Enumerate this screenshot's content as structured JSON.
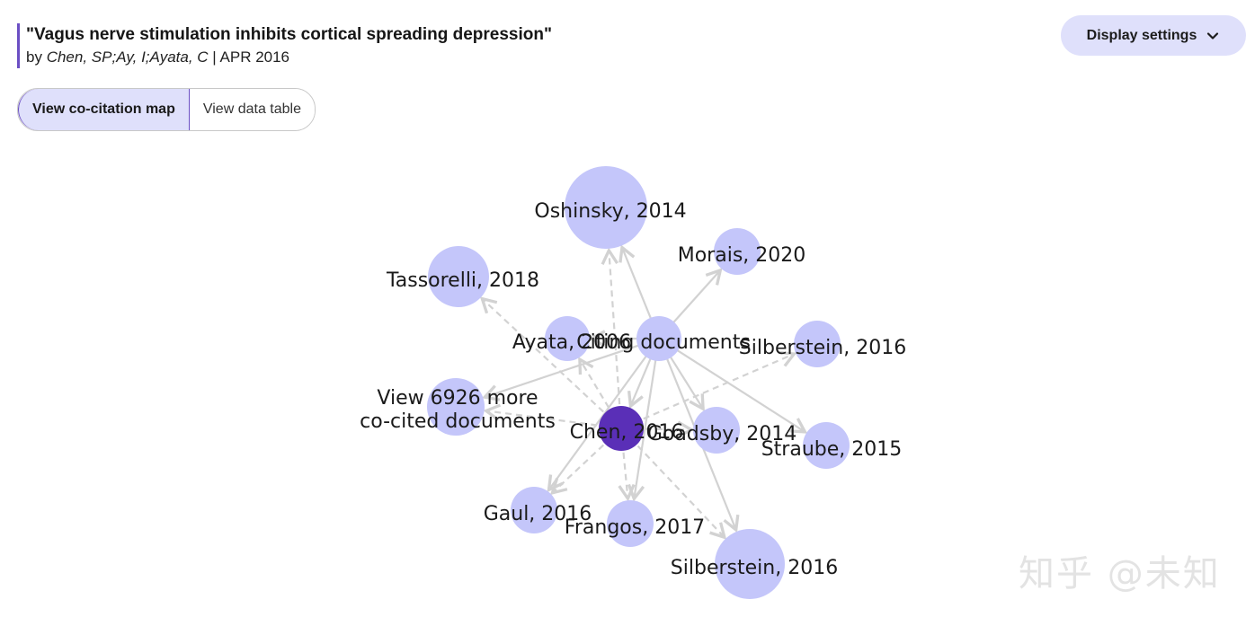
{
  "header": {
    "title": "\"Vagus nerve stimulation inhibits cortical spreading depression\"",
    "by": "by",
    "authors": "Chen, SP;Ay, I;Ayata, C",
    "separator": "|",
    "date": "APR 2016"
  },
  "display_settings": {
    "label": "Display settings",
    "icon": "chevron-down-icon"
  },
  "view_toggle": {
    "options": [
      {
        "label": "View co-citation map",
        "selected": true
      },
      {
        "label": "View data table",
        "selected": false
      }
    ]
  },
  "colors": {
    "node": "#c4c6fa",
    "focal_node": "#5a2fb7",
    "edge": "#d2d2d2",
    "accent": "#6b4fc4",
    "button_bg": "#dfe0fb"
  },
  "graph": {
    "focal": {
      "label": "Chen, 2016"
    },
    "hub": {
      "label": "Citing documents"
    },
    "nodes": [
      {
        "label": "Oshinsky, 2014"
      },
      {
        "label": "Morais, 2020"
      },
      {
        "label": "Tassorelli, 2018"
      },
      {
        "label": "Ayata, 2006"
      },
      {
        "label": "Silberstein, 2016"
      },
      {
        "label": "View 6926 more co-cited documents"
      },
      {
        "label": "Goadsby, 2014"
      },
      {
        "label": "Straube, 2015"
      },
      {
        "label": "Gaul, 2016"
      },
      {
        "label": "Frangos, 2017"
      },
      {
        "label": "Silberstein, 2016"
      }
    ]
  },
  "watermark": "知乎 @未知"
}
